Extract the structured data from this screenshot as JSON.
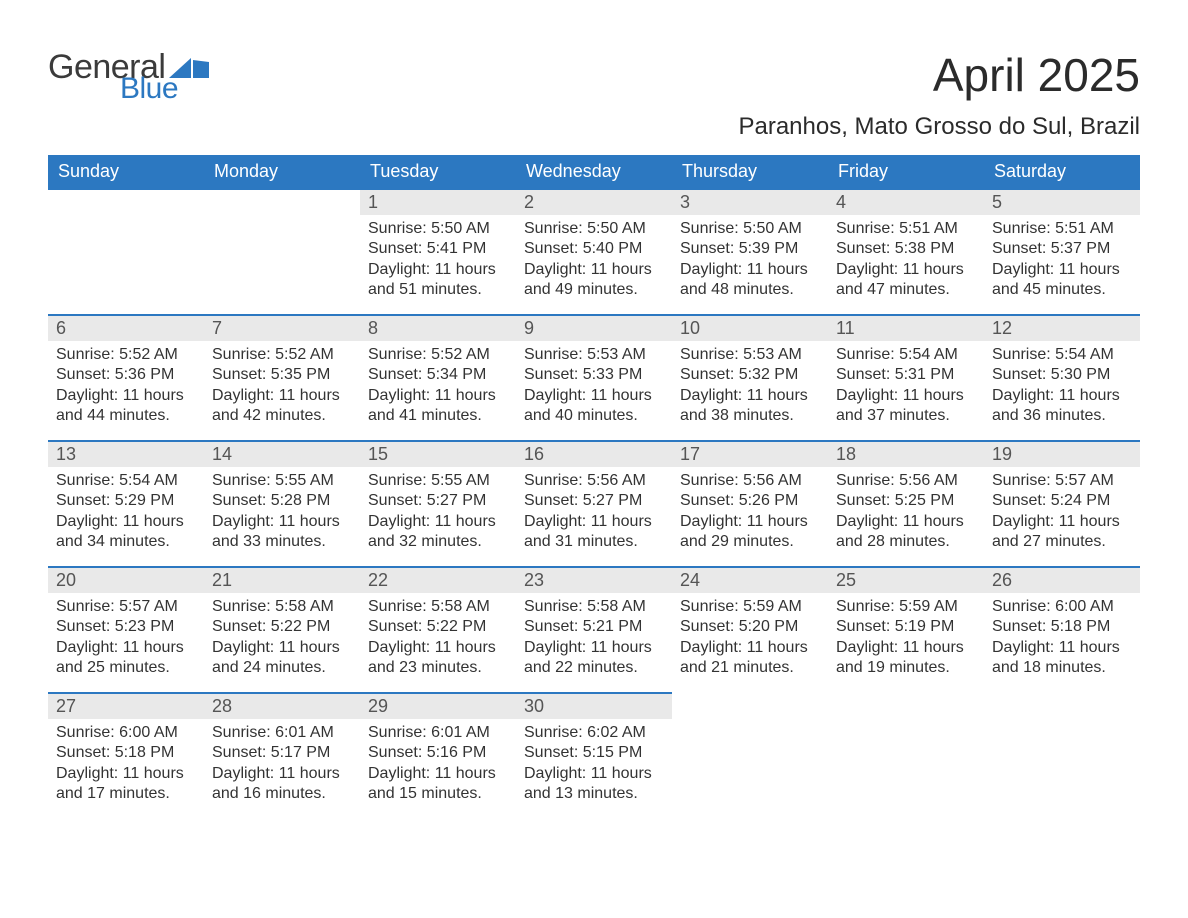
{
  "logo": {
    "word1": "General",
    "word2": "Blue",
    "text_color": "#3b3b3b",
    "accent_color": "#2c78c1"
  },
  "title": "April 2025",
  "location": "Paranhos, Mato Grosso do Sul, Brazil",
  "colors": {
    "header_bg": "#2c78c1",
    "header_text": "#ffffff",
    "daynum_bg": "#e9e9e9",
    "daynum_text": "#555555",
    "body_text": "#333333",
    "row_top_border": "#2c78c1",
    "page_bg": "#ffffff"
  },
  "typography": {
    "title_fontsize": 46,
    "location_fontsize": 24,
    "th_fontsize": 18,
    "daynum_fontsize": 18,
    "body_fontsize": 16
  },
  "weekdays": [
    "Sunday",
    "Monday",
    "Tuesday",
    "Wednesday",
    "Thursday",
    "Friday",
    "Saturday"
  ],
  "weeks": [
    [
      null,
      null,
      {
        "day": "1",
        "sunrise": "Sunrise: 5:50 AM",
        "sunset": "Sunset: 5:41 PM",
        "dl1": "Daylight: 11 hours",
        "dl2": "and 51 minutes."
      },
      {
        "day": "2",
        "sunrise": "Sunrise: 5:50 AM",
        "sunset": "Sunset: 5:40 PM",
        "dl1": "Daylight: 11 hours",
        "dl2": "and 49 minutes."
      },
      {
        "day": "3",
        "sunrise": "Sunrise: 5:50 AM",
        "sunset": "Sunset: 5:39 PM",
        "dl1": "Daylight: 11 hours",
        "dl2": "and 48 minutes."
      },
      {
        "day": "4",
        "sunrise": "Sunrise: 5:51 AM",
        "sunset": "Sunset: 5:38 PM",
        "dl1": "Daylight: 11 hours",
        "dl2": "and 47 minutes."
      },
      {
        "day": "5",
        "sunrise": "Sunrise: 5:51 AM",
        "sunset": "Sunset: 5:37 PM",
        "dl1": "Daylight: 11 hours",
        "dl2": "and 45 minutes."
      }
    ],
    [
      {
        "day": "6",
        "sunrise": "Sunrise: 5:52 AM",
        "sunset": "Sunset: 5:36 PM",
        "dl1": "Daylight: 11 hours",
        "dl2": "and 44 minutes."
      },
      {
        "day": "7",
        "sunrise": "Sunrise: 5:52 AM",
        "sunset": "Sunset: 5:35 PM",
        "dl1": "Daylight: 11 hours",
        "dl2": "and 42 minutes."
      },
      {
        "day": "8",
        "sunrise": "Sunrise: 5:52 AM",
        "sunset": "Sunset: 5:34 PM",
        "dl1": "Daylight: 11 hours",
        "dl2": "and 41 minutes."
      },
      {
        "day": "9",
        "sunrise": "Sunrise: 5:53 AM",
        "sunset": "Sunset: 5:33 PM",
        "dl1": "Daylight: 11 hours",
        "dl2": "and 40 minutes."
      },
      {
        "day": "10",
        "sunrise": "Sunrise: 5:53 AM",
        "sunset": "Sunset: 5:32 PM",
        "dl1": "Daylight: 11 hours",
        "dl2": "and 38 minutes."
      },
      {
        "day": "11",
        "sunrise": "Sunrise: 5:54 AM",
        "sunset": "Sunset: 5:31 PM",
        "dl1": "Daylight: 11 hours",
        "dl2": "and 37 minutes."
      },
      {
        "day": "12",
        "sunrise": "Sunrise: 5:54 AM",
        "sunset": "Sunset: 5:30 PM",
        "dl1": "Daylight: 11 hours",
        "dl2": "and 36 minutes."
      }
    ],
    [
      {
        "day": "13",
        "sunrise": "Sunrise: 5:54 AM",
        "sunset": "Sunset: 5:29 PM",
        "dl1": "Daylight: 11 hours",
        "dl2": "and 34 minutes."
      },
      {
        "day": "14",
        "sunrise": "Sunrise: 5:55 AM",
        "sunset": "Sunset: 5:28 PM",
        "dl1": "Daylight: 11 hours",
        "dl2": "and 33 minutes."
      },
      {
        "day": "15",
        "sunrise": "Sunrise: 5:55 AM",
        "sunset": "Sunset: 5:27 PM",
        "dl1": "Daylight: 11 hours",
        "dl2": "and 32 minutes."
      },
      {
        "day": "16",
        "sunrise": "Sunrise: 5:56 AM",
        "sunset": "Sunset: 5:27 PM",
        "dl1": "Daylight: 11 hours",
        "dl2": "and 31 minutes."
      },
      {
        "day": "17",
        "sunrise": "Sunrise: 5:56 AM",
        "sunset": "Sunset: 5:26 PM",
        "dl1": "Daylight: 11 hours",
        "dl2": "and 29 minutes."
      },
      {
        "day": "18",
        "sunrise": "Sunrise: 5:56 AM",
        "sunset": "Sunset: 5:25 PM",
        "dl1": "Daylight: 11 hours",
        "dl2": "and 28 minutes."
      },
      {
        "day": "19",
        "sunrise": "Sunrise: 5:57 AM",
        "sunset": "Sunset: 5:24 PM",
        "dl1": "Daylight: 11 hours",
        "dl2": "and 27 minutes."
      }
    ],
    [
      {
        "day": "20",
        "sunrise": "Sunrise: 5:57 AM",
        "sunset": "Sunset: 5:23 PM",
        "dl1": "Daylight: 11 hours",
        "dl2": "and 25 minutes."
      },
      {
        "day": "21",
        "sunrise": "Sunrise: 5:58 AM",
        "sunset": "Sunset: 5:22 PM",
        "dl1": "Daylight: 11 hours",
        "dl2": "and 24 minutes."
      },
      {
        "day": "22",
        "sunrise": "Sunrise: 5:58 AM",
        "sunset": "Sunset: 5:22 PM",
        "dl1": "Daylight: 11 hours",
        "dl2": "and 23 minutes."
      },
      {
        "day": "23",
        "sunrise": "Sunrise: 5:58 AM",
        "sunset": "Sunset: 5:21 PM",
        "dl1": "Daylight: 11 hours",
        "dl2": "and 22 minutes."
      },
      {
        "day": "24",
        "sunrise": "Sunrise: 5:59 AM",
        "sunset": "Sunset: 5:20 PM",
        "dl1": "Daylight: 11 hours",
        "dl2": "and 21 minutes."
      },
      {
        "day": "25",
        "sunrise": "Sunrise: 5:59 AM",
        "sunset": "Sunset: 5:19 PM",
        "dl1": "Daylight: 11 hours",
        "dl2": "and 19 minutes."
      },
      {
        "day": "26",
        "sunrise": "Sunrise: 6:00 AM",
        "sunset": "Sunset: 5:18 PM",
        "dl1": "Daylight: 11 hours",
        "dl2": "and 18 minutes."
      }
    ],
    [
      {
        "day": "27",
        "sunrise": "Sunrise: 6:00 AM",
        "sunset": "Sunset: 5:18 PM",
        "dl1": "Daylight: 11 hours",
        "dl2": "and 17 minutes."
      },
      {
        "day": "28",
        "sunrise": "Sunrise: 6:01 AM",
        "sunset": "Sunset: 5:17 PM",
        "dl1": "Daylight: 11 hours",
        "dl2": "and 16 minutes."
      },
      {
        "day": "29",
        "sunrise": "Sunrise: 6:01 AM",
        "sunset": "Sunset: 5:16 PM",
        "dl1": "Daylight: 11 hours",
        "dl2": "and 15 minutes."
      },
      {
        "day": "30",
        "sunrise": "Sunrise: 6:02 AM",
        "sunset": "Sunset: 5:15 PM",
        "dl1": "Daylight: 11 hours",
        "dl2": "and 13 minutes."
      },
      null,
      null,
      null
    ]
  ]
}
